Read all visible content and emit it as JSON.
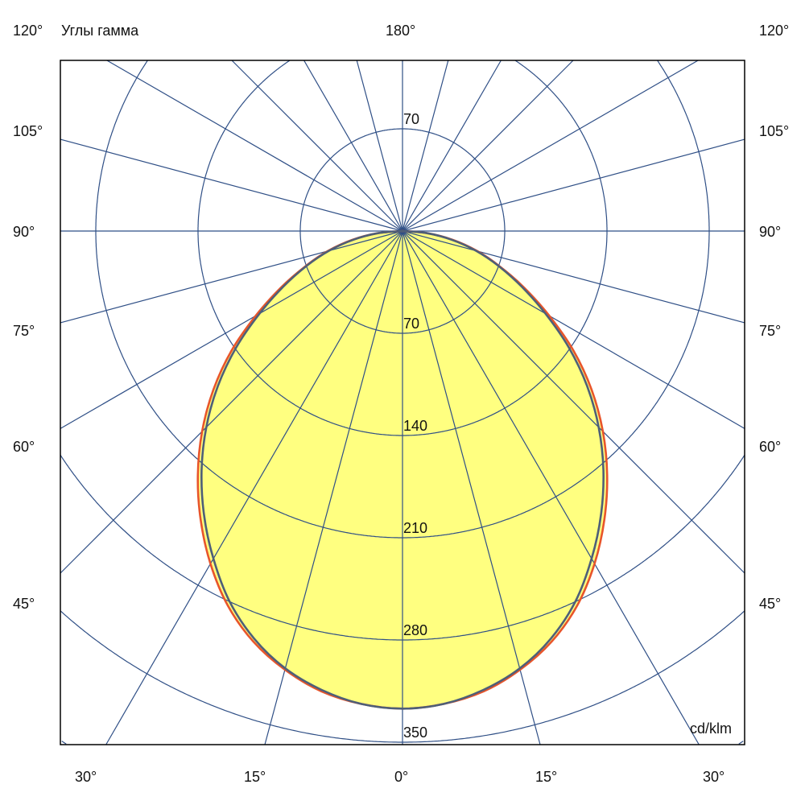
{
  "chart_data": {
    "type": "polar",
    "title": "Углы гамма",
    "unit_label": "cd/klm",
    "top_label": "180°",
    "side_angle_labels": [
      "120°",
      "105°",
      "90°",
      "75°",
      "60°",
      "45°"
    ],
    "bottom_angle_labels": [
      "30°",
      "15°",
      "0°",
      "15°",
      "30°"
    ],
    "ring_values": [
      70,
      140,
      210,
      280,
      350
    ],
    "ring_labels": [
      "70",
      "140",
      "210",
      "280",
      "350"
    ],
    "top_ring_label": "70",
    "radial_step_deg": 15,
    "gamma_deg": [
      0,
      5,
      10,
      15,
      20,
      25,
      30,
      35,
      40,
      45,
      50,
      55,
      60,
      65,
      70,
      75,
      80,
      85,
      90
    ],
    "series": [
      {
        "color": "#e8552b",
        "values": [
          327,
          325,
          320,
          311,
          299,
          283,
          263,
          241,
          218,
          194,
          169,
          143,
          116,
          92,
          71,
          53,
          35,
          17,
          0
        ]
      },
      {
        "color": "#4e5f78",
        "values": [
          327,
          325,
          319,
          310,
          297,
          280,
          259,
          237,
          214,
          190,
          165,
          139,
          113,
          90,
          70,
          52,
          34,
          17,
          0
        ]
      }
    ],
    "fill_color": "#ffff80",
    "grid_color": "#2f4f86",
    "symmetric": true
  }
}
